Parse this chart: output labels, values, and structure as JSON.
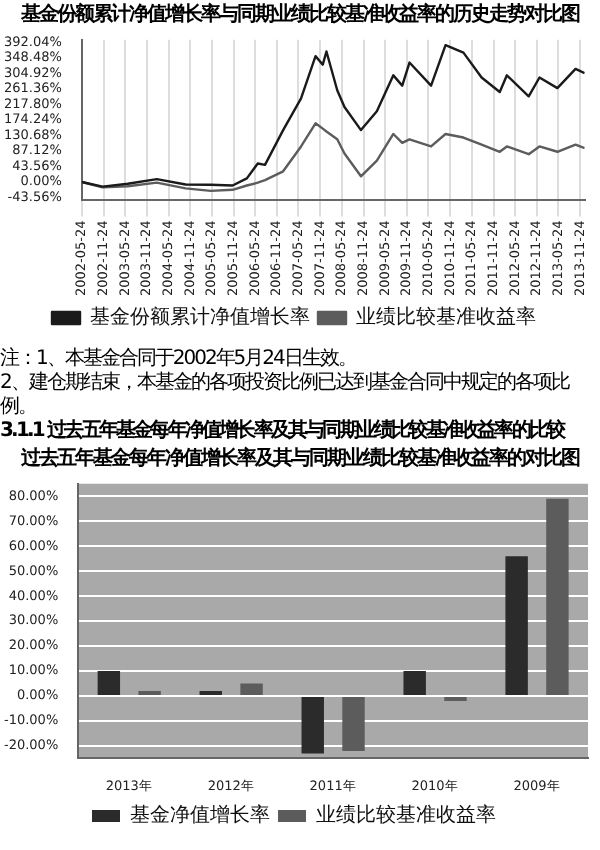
{
  "chart_data": [
    {
      "type": "line",
      "title": "基金份额累计净值增长率与同期业绩比较基准收益率的历史走势对比图",
      "x": [
        "2002-05-24",
        "2002-11-15",
        "2003-06-15",
        "2004-02-15",
        "2004-10-15",
        "2005-05-15",
        "2005-11-15",
        "2006-03-15",
        "2006-06-15",
        "2006-08-15",
        "2007-01-15",
        "2007-06-15",
        "2007-10-15",
        "2007-12-15",
        "2008-01-15",
        "2008-04-15",
        "2008-06-15",
        "2008-11-01",
        "2009-03-15",
        "2009-08-01",
        "2009-10-15",
        "2009-12-15",
        "2010-06-15",
        "2010-10-15",
        "2011-03-15",
        "2011-08-15",
        "2012-01-15",
        "2012-03-15",
        "2012-09-15",
        "2012-12-15",
        "2013-05-15",
        "2013-10-15",
        "2013-12-31"
      ],
      "series": [
        {
          "name": "基金份额累计净值增长率",
          "color": "#1a1a1a",
          "values": [
            0,
            -13,
            -5,
            8,
            -7,
            -8,
            -10,
            10,
            52,
            48,
            146,
            235,
            354,
            330,
            367,
            258,
            211,
            146,
            199,
            300,
            271,
            336,
            271,
            385,
            364,
            294,
            253,
            300,
            241,
            294,
            264,
            318,
            306
          ]
        },
        {
          "name": "业绩比较基准收益率",
          "color": "#5c5c5c",
          "values": [
            0,
            -15,
            -12,
            -2,
            -18,
            -25,
            -22,
            -10,
            -2,
            5,
            30,
            100,
            165,
            150,
            142,
            120,
            80,
            16,
            60,
            135,
            110,
            120,
            100,
            135,
            125,
            105,
            85,
            100,
            78,
            100,
            85,
            105,
            95
          ]
        }
      ],
      "xlim": [
        "2002-05-24",
        "2013-12-31"
      ],
      "xticks": [
        "2002-05-24",
        "2002-11-24",
        "2003-05-24",
        "2003-11-24",
        "2004-05-24",
        "2004-11-24",
        "2005-05-24",
        "2005-11-24",
        "2006-05-24",
        "2006-11-24",
        "2007-05-24",
        "2007-11-24",
        "2008-05-24",
        "2008-11-24",
        "2009-05-24",
        "2009-11-24",
        "2010-05-24",
        "2010-11-24",
        "2011-05-24",
        "2011-11-24",
        "2012-05-24",
        "2012-11-24",
        "2013-05-24",
        "2013-11-24"
      ],
      "ylim": [
        -52,
        400
      ],
      "yticks": [
        {
          "value": -43.56,
          "label": "-43.56%"
        },
        {
          "value": 0,
          "label": "0.00%"
        },
        {
          "value": 43.56,
          "label": "43.56%"
        },
        {
          "value": 87.12,
          "label": "87.12%"
        },
        {
          "value": 130.68,
          "label": "130.68%"
        },
        {
          "value": 174.24,
          "label": "174.24%"
        },
        {
          "value": 217.8,
          "label": "217.80%"
        },
        {
          "value": 261.36,
          "label": "261.36%"
        },
        {
          "value": 304.92,
          "label": "304.92%"
        },
        {
          "value": 348.48,
          "label": "348.48%"
        },
        {
          "value": 392.04,
          "label": "392.04%"
        }
      ],
      "grid": "x",
      "legend": "bottom",
      "annotations": [
        "注：1、本基金合同于2002年5月24日生效。",
        "2、建仓期结束，本基金的各项投资比例已达到基金合同中规定的各项比例。"
      ]
    },
    {
      "type": "bar",
      "title": "过去五年基金每年净值增长率及其与同期业绩比较基准收益率的对比图",
      "categories": [
        "2013年",
        "2012年",
        "2011年",
        "2010年",
        "2009年"
      ],
      "series": [
        {
          "name": "基金净值增长率",
          "color": "#2b2b2b",
          "values": [
            10,
            2,
            -23,
            10,
            56
          ]
        },
        {
          "name": "业绩比较基准收益率",
          "color": "#5c5c5c",
          "values": [
            2,
            5,
            -22,
            -2,
            79
          ]
        }
      ],
      "ylim": [
        -25,
        85
      ],
      "yticks": [
        {
          "value": -20,
          "label": "-20.00%"
        },
        {
          "value": -10,
          "label": "-10.00%"
        },
        {
          "value": 0,
          "label": "0.00%"
        },
        {
          "value": 10,
          "label": "10.00%"
        },
        {
          "value": 20,
          "label": "20.00%"
        },
        {
          "value": 30,
          "label": "30.00%"
        },
        {
          "value": 40,
          "label": "40.00%"
        },
        {
          "value": 50,
          "label": "50.00%"
        },
        {
          "value": 60,
          "label": "60.00%"
        },
        {
          "value": 70,
          "label": "70.00%"
        },
        {
          "value": 80,
          "label": "80.00%"
        }
      ],
      "grid": "y",
      "legend": "bottom",
      "annotations": [
        "3.1.1 过去五年基金每年净值增长率及其与同期业绩比较基准收益率的比较"
      ]
    }
  ]
}
